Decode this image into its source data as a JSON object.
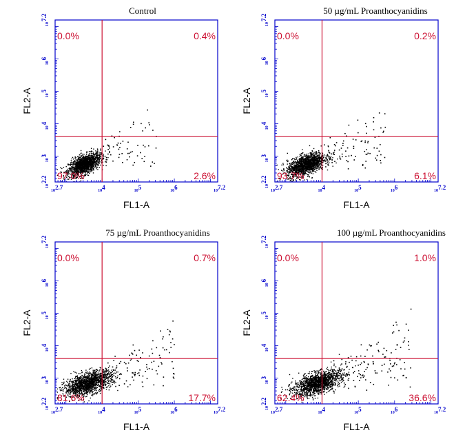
{
  "colors": {
    "frame": "#0000cc",
    "gate": "#cc1133",
    "events": "#000000",
    "tick_labels": "#0000cc"
  },
  "chart_data": [
    {
      "type": "scatter",
      "title": "Control",
      "xlabel": "FL1-A",
      "ylabel": "FL2-A",
      "x_scale": "log",
      "y_scale": "log",
      "xlim": [
        2.7,
        7.2
      ],
      "ylim": [
        2.2,
        7.2
      ],
      "x_ticks": [
        "2.7",
        "4",
        "5",
        "6",
        "7.2"
      ],
      "y_ticks": [
        "2.2",
        "3",
        "4",
        "5",
        "6",
        "7.2"
      ],
      "gate": {
        "x": 4.0,
        "y": 3.6
      },
      "quadrants": {
        "upper_left": "0.0%",
        "upper_right": "0.4%",
        "lower_left": "97.0%",
        "lower_right": "2.6%"
      },
      "cluster": {
        "cx": 3.5,
        "cy": 2.75,
        "spread": "tight"
      }
    },
    {
      "type": "scatter",
      "title": "50 µg/mL Proanthocyanidins",
      "xlabel": "FL1-A",
      "ylabel": "FL2-A",
      "x_scale": "log",
      "y_scale": "log",
      "xlim": [
        2.7,
        7.2
      ],
      "ylim": [
        2.2,
        7.2
      ],
      "x_ticks": [
        "2.7",
        "4",
        "5",
        "6",
        "7.2"
      ],
      "y_ticks": [
        "2.2",
        "3",
        "4",
        "5",
        "6",
        "7.2"
      ],
      "gate": {
        "x": 4.0,
        "y": 3.6
      },
      "quadrants": {
        "upper_left": "0.0%",
        "upper_right": "0.2%",
        "lower_left": "93.7%",
        "lower_right": "6.1%"
      },
      "cluster": {
        "cx": 3.55,
        "cy": 2.75,
        "spread": "medium"
      }
    },
    {
      "type": "scatter",
      "title": "75 µg/mL Proanthocyanidins",
      "xlabel": "FL1-A",
      "ylabel": "FL2-A",
      "x_scale": "log",
      "y_scale": "log",
      "xlim": [
        2.7,
        7.2
      ],
      "ylim": [
        2.2,
        7.2
      ],
      "x_ticks": [
        "2.7",
        "4",
        "5",
        "6",
        "7.2"
      ],
      "y_ticks": [
        "2.2",
        "3",
        "4",
        "5",
        "6",
        "7.2"
      ],
      "gate": {
        "x": 4.0,
        "y": 3.6
      },
      "quadrants": {
        "upper_left": "0.0%",
        "upper_right": "0.7%",
        "lower_left": "81.6%",
        "lower_right": "17.7%"
      },
      "cluster": {
        "cx": 3.6,
        "cy": 2.85,
        "spread": "wide"
      }
    },
    {
      "type": "scatter",
      "title": "100 µg/mL Proanthocyanidins",
      "xlabel": "FL1-A",
      "ylabel": "FL2-A",
      "x_scale": "log",
      "y_scale": "log",
      "xlim": [
        2.7,
        7.2
      ],
      "ylim": [
        2.2,
        7.2
      ],
      "x_ticks": [
        "2.7",
        "4",
        "5",
        "6",
        "7.2"
      ],
      "y_ticks": [
        "2.2",
        "3",
        "4",
        "5",
        "6",
        "7.2"
      ],
      "gate": {
        "x": 4.0,
        "y": 3.6
      },
      "quadrants": {
        "upper_left": "0.0%",
        "upper_right": "1.0%",
        "lower_left": "62.4%",
        "lower_right": "36.6%"
      },
      "cluster": {
        "cx": 3.85,
        "cy": 2.85,
        "spread": "wide"
      }
    }
  ]
}
